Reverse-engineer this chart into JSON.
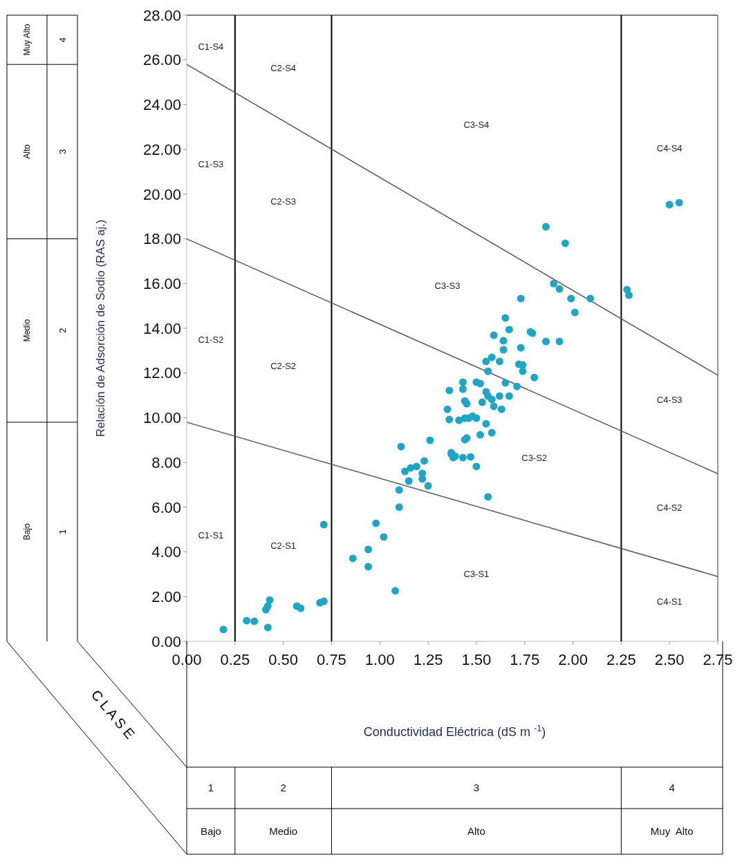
{
  "chart_data": {
    "type": "scatter",
    "xlabel": "Conductividad Eléctrica (dS m $^{-1}$)",
    "ylabel": "Relación de Adsorción de Sodio (RAS aj.)",
    "xlim": [
      0,
      2.75
    ],
    "ylim": [
      0,
      28
    ],
    "xticks": [
      {
        "value": 0,
        "label": "0.00"
      },
      {
        "value": 0.25,
        "label": "0.25"
      },
      {
        "value": 0.5,
        "label": "0.50"
      },
      {
        "value": 0.75,
        "label": "0.75"
      },
      {
        "value": 1,
        "label": "1.00"
      },
      {
        "value": 1.25,
        "label": "1.25"
      },
      {
        "value": 1.5,
        "label": "1.50"
      },
      {
        "value": 1.75,
        "label": "1.75"
      },
      {
        "value": 2,
        "label": "2.00"
      },
      {
        "value": 2.25,
        "label": "2.25"
      },
      {
        "value": 2.5,
        "label": "2.50"
      },
      {
        "value": 2.75,
        "label": "2.75"
      }
    ],
    "yticks": [
      {
        "value": 0,
        "label": "0.00"
      },
      {
        "value": 2,
        "label": "2.00"
      },
      {
        "value": 4,
        "label": "4.00"
      },
      {
        "value": 6,
        "label": "6.00"
      },
      {
        "value": 8,
        "label": "8.00"
      },
      {
        "value": 10,
        "label": "10.00"
      },
      {
        "value": 12,
        "label": "12.00"
      },
      {
        "value": 14,
        "label": "14.00"
      },
      {
        "value": 16,
        "label": "16.00"
      },
      {
        "value": 18,
        "label": "18.00"
      },
      {
        "value": 20,
        "label": "20.00"
      },
      {
        "value": 22,
        "label": "22.00"
      },
      {
        "value": 24,
        "label": "24.00"
      },
      {
        "value": 26,
        "label": "26.00"
      },
      {
        "value": 28,
        "label": "28.00"
      }
    ],
    "grid": false,
    "series": [
      {
        "color": "#1fa5c6",
        "marker": "circle",
        "x": [
          0.19,
          0.31,
          0.35,
          0.42,
          0.41,
          0.42,
          0.43,
          0.57,
          0.59,
          0.69,
          0.71,
          0.71,
          0.86,
          0.94,
          0.94,
          0.98,
          1.02,
          1.08,
          1.1,
          1.1,
          1.11,
          1.15,
          1.13,
          1.16,
          1.19,
          1.22,
          1.22,
          1.23,
          1.25,
          1.26,
          1.36,
          1.35,
          1.36,
          1.37,
          1.38,
          1.86,
          1.96,
          1.9,
          1.93,
          1.99,
          2.09,
          2.01,
          1.73,
          1.65,
          1.67,
          1.78,
          1.79,
          1.59,
          1.64,
          1.64,
          1.73,
          1.86,
          1.93,
          1.55,
          1.58,
          1.62,
          1.72,
          1.74,
          1.74,
          1.8,
          1.56,
          1.65,
          1.71,
          1.43,
          1.43,
          1.5,
          1.52,
          1.55,
          1.56,
          1.53,
          1.58,
          1.62,
          1.67,
          1.59,
          1.63,
          1.44,
          1.45,
          1.41,
          1.44,
          1.46,
          1.48,
          1.5,
          1.55,
          1.58,
          1.52,
          1.44,
          1.45,
          1.37,
          1.39,
          1.43,
          1.47,
          1.5,
          1.56,
          2.5,
          2.55,
          2.28,
          2.29
        ],
        "values": [
          0.53,
          0.93,
          0.9,
          0.62,
          1.42,
          1.58,
          1.85,
          1.58,
          1.48,
          1.73,
          1.79,
          5.22,
          3.71,
          3.34,
          4.11,
          5.28,
          4.67,
          2.26,
          6.0,
          6.77,
          8.71,
          7.17,
          7.6,
          7.76,
          7.82,
          7.51,
          7.26,
          8.07,
          6.95,
          8.99,
          11.22,
          10.38,
          9.92,
          8.37,
          8.22,
          18.54,
          17.8,
          16.0,
          15.76,
          15.33,
          15.33,
          14.71,
          15.33,
          14.46,
          13.94,
          13.84,
          13.78,
          13.69,
          13.44,
          13.04,
          13.13,
          13.41,
          13.41,
          12.52,
          12.7,
          12.52,
          12.39,
          12.36,
          12.08,
          11.8,
          12.08,
          11.56,
          11.4,
          11.59,
          11.28,
          11.59,
          11.53,
          11.16,
          10.97,
          10.69,
          10.82,
          10.97,
          10.97,
          10.51,
          10.38,
          10.75,
          10.63,
          9.89,
          9.98,
          9.98,
          10.07,
          9.98,
          9.73,
          9.33,
          9.24,
          9.02,
          9.09,
          8.44,
          8.28,
          8.22,
          8.25,
          7.82,
          6.46,
          19.53,
          19.62,
          15.73,
          15.48
        ]
      },
      {
        "type": "line",
        "color": "#555555",
        "marker": "none",
        "line_style": "solid",
        "x": [
          0,
          2.75
        ],
        "values": [
          9.8,
          2.9
        ]
      },
      {
        "type": "line",
        "color": "#555555",
        "marker": "none",
        "line_style": "solid",
        "x": [
          0,
          2.75
        ],
        "values": [
          18.0,
          7.5
        ]
      },
      {
        "type": "line",
        "color": "#555555",
        "marker": "none",
        "line_style": "solid",
        "x": [
          0,
          2.75
        ],
        "values": [
          25.8,
          11.9
        ]
      }
    ],
    "ref_lines": [
      {
        "axis": "x",
        "value": 0.25,
        "color": "#000000"
      },
      {
        "axis": "x",
        "value": 0.75,
        "color": "#000000"
      },
      {
        "axis": "x",
        "value": 2.25,
        "color": "#000000"
      }
    ],
    "annotations": [
      "C1-S4",
      "C2-S4",
      "C3-S4",
      "C4-S4",
      "C1-S3",
      "C2-S3",
      "C3-S3",
      "C4-S3",
      "C1-S2",
      "C2-S2",
      "C3-S2",
      "C4-S2",
      "C1-S1",
      "C2-S1",
      "C3-S1",
      "C4-S1",
      "Muy Alto",
      "4",
      "Alto",
      "3",
      "Medio",
      "2",
      "Bajo",
      "1",
      "1",
      "Bajo",
      "2",
      "Medio",
      "3",
      "Alto",
      "4",
      "Muy  Alto",
      "C L A S E"
    ]
  }
}
